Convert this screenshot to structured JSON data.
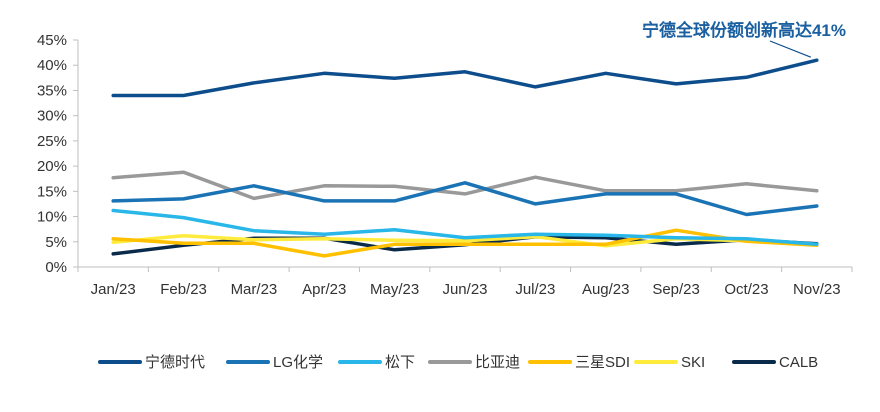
{
  "chart_data": {
    "type": "line",
    "x": [
      "Jan/23",
      "Feb/23",
      "Mar/23",
      "Apr/23",
      "May/23",
      "Jun/23",
      "Jul/23",
      "Aug/23",
      "Sep/23",
      "Oct/23",
      "Nov/23"
    ],
    "ylim": [
      0,
      45
    ],
    "yticks": [
      "0%",
      "5%",
      "10%",
      "15%",
      "20%",
      "25%",
      "30%",
      "35%",
      "40%",
      "45%"
    ],
    "grid": false,
    "legend_position": "bottom",
    "annotation": {
      "text": "宁德全球份额创新高达41%",
      "color": "#1a5fa0"
    },
    "series": [
      {
        "name": "宁德时代",
        "color": "#0d4d8c",
        "values": [
          34.0,
          34.0,
          36.5,
          38.4,
          37.4,
          38.7,
          35.7,
          38.4,
          36.3,
          37.6,
          41.0
        ]
      },
      {
        "name": "LG化学",
        "color": "#1a73b5",
        "values": [
          13.1,
          13.5,
          16.1,
          13.1,
          13.1,
          16.7,
          12.5,
          14.5,
          14.5,
          10.4,
          12.1
        ]
      },
      {
        "name": "松下",
        "color": "#29b6e8",
        "values": [
          11.2,
          9.8,
          7.2,
          6.5,
          7.4,
          5.8,
          6.5,
          6.3,
          5.8,
          5.6,
          4.5
        ]
      },
      {
        "name": "比亚迪",
        "color": "#999999",
        "values": [
          17.7,
          18.8,
          13.6,
          16.1,
          16.0,
          14.5,
          17.8,
          15.1,
          15.1,
          16.5,
          15.1
        ]
      },
      {
        "name": "三星SDI",
        "color": "#ffc000",
        "values": [
          5.6,
          4.7,
          4.7,
          2.2,
          4.5,
          4.5,
          4.5,
          4.5,
          7.3,
          5.1,
          4.3
        ]
      },
      {
        "name": "SKI",
        "color": "#ffeb3b",
        "values": [
          4.9,
          6.2,
          5.4,
          5.6,
          5.3,
          5.2,
          6.0,
          4.2,
          5.6,
          5.2,
          4.4
        ]
      },
      {
        "name": "CALB",
        "color": "#0a2a4a",
        "values": [
          2.6,
          4.3,
          5.7,
          5.7,
          3.4,
          4.4,
          6.0,
          5.8,
          4.5,
          5.4,
          4.6
        ]
      }
    ]
  }
}
